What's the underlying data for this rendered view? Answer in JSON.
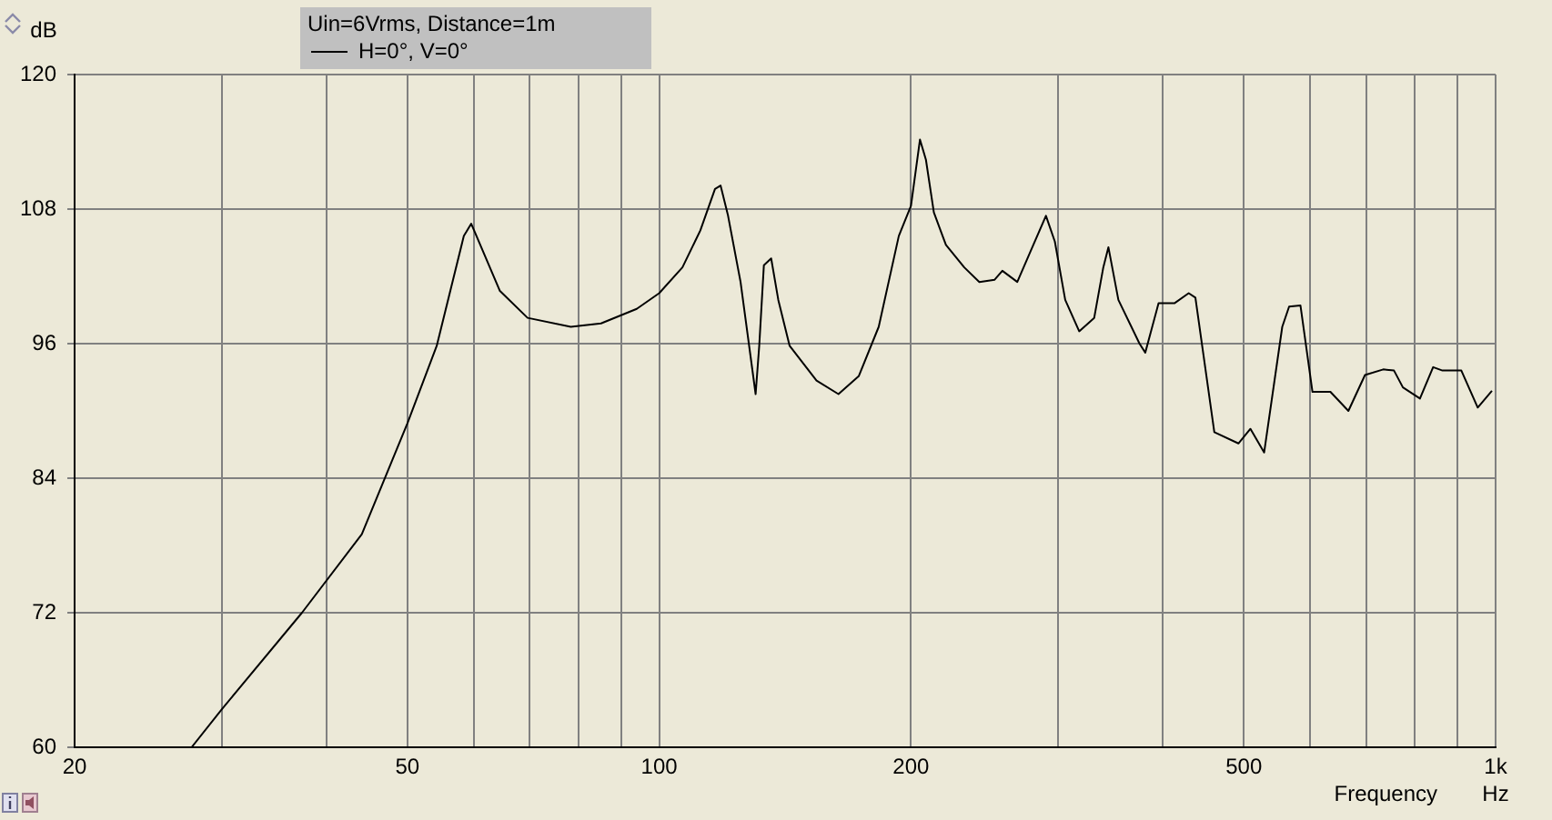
{
  "chart_data": {
    "type": "line",
    "legend_title": "Uin=6Vrms, Distance=1m",
    "xlabel": "Frequency",
    "ylabel": "dB",
    "annotations": [
      "Hz"
    ],
    "log": "x",
    "grid": true,
    "legend": "top",
    "marker": "none",
    "line_style": "solid",
    "xlim": [
      20,
      1000
    ],
    "ylim": [
      60,
      120
    ],
    "xticks": [
      20,
      {
        "value": 30,
        "label": null
      },
      {
        "value": 40,
        "label": null
      },
      50,
      {
        "value": 60,
        "label": null
      },
      {
        "value": 70,
        "label": null
      },
      {
        "value": 80,
        "label": null
      },
      {
        "value": 90,
        "label": null
      },
      100,
      200,
      {
        "value": 300,
        "label": null
      },
      {
        "value": 400,
        "label": null
      },
      500,
      {
        "value": 600,
        "label": null
      },
      {
        "value": 700,
        "label": null
      },
      {
        "value": 800,
        "label": null
      },
      {
        "value": 900,
        "label": null
      },
      {
        "value": 1000,
        "label": "1k"
      }
    ],
    "yticks": [
      60,
      72,
      84,
      96,
      108,
      120
    ],
    "series": [
      {
        "name": "H=0°, V=0°",
        "color": "#000000",
        "x": [
          20,
          27.6,
          30,
          37.4,
          44.1,
          50,
          54.2,
          58.4,
          59.6,
          64.5,
          69.6,
          78.4,
          85.2,
          94,
          100,
          106.6,
          112,
          116.6,
          118.4,
          120.8,
          125.1,
          130.4,
          131.7,
          133.4,
          136.1,
          138.8,
          143.2,
          154.2,
          163.8,
          173.2,
          183,
          193.4,
          200,
          205,
          208.4,
          213,
          220.2,
          231.6,
          241.4,
          251.8,
          257.2,
          268,
          278.2,
          290,
          297.2,
          305.8,
          317.8,
          331.2,
          339.6,
          344.4,
          354,
          375.2,
          381.2,
          395.4,
          413,
          429.6,
          437.6,
          461,
          492.6,
          509.2,
          528.8,
          555.8,
          566.4,
          584.4,
          604,
          634.6,
          666.8,
          698,
          734,
          756,
          774.8,
          812,
          842,
          864,
          910,
          952,
          990
        ],
        "values": [
          60,
          60,
          63.4,
          72,
          79,
          88.9,
          95.8,
          105.6,
          106.7,
          100.7,
          98.3,
          97.5,
          97.8,
          99.1,
          100.5,
          102.8,
          106.1,
          109.8,
          110.1,
          107.5,
          101.5,
          91.5,
          95.8,
          103,
          103.6,
          99.9,
          95.8,
          92.7,
          91.5,
          93.1,
          97.5,
          105.6,
          108.3,
          114.2,
          112.4,
          107.7,
          104.8,
          102.8,
          101.5,
          101.7,
          102.5,
          101.5,
          104.3,
          107.4,
          105.1,
          99.9,
          97.1,
          98.3,
          102.8,
          104.6,
          99.9,
          96,
          95.2,
          99.6,
          99.6,
          100.5,
          100.1,
          88.1,
          87.1,
          88.4,
          86.3,
          97.5,
          99.3,
          99.4,
          91.7,
          91.7,
          90,
          93.2,
          93.7,
          93.6,
          92.1,
          91.1,
          93.9,
          93.6,
          93.6,
          90.3,
          91.8
        ]
      }
    ]
  }
}
